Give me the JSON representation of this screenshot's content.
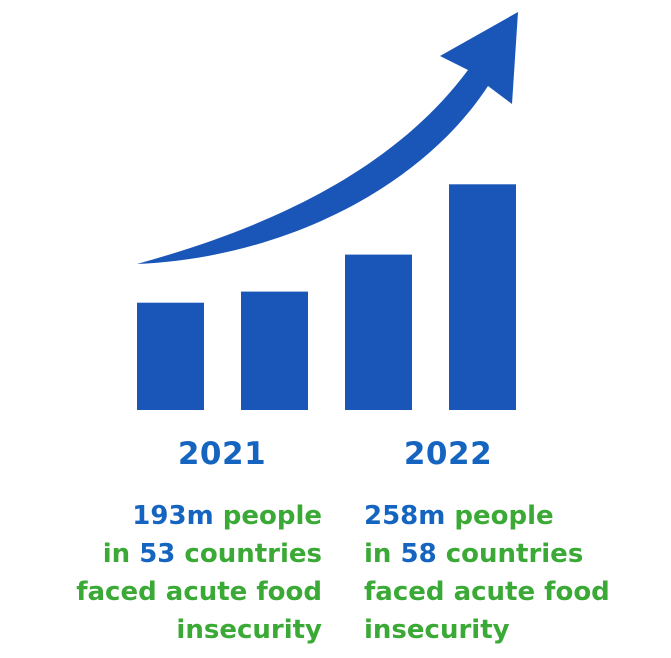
{
  "chart_data": {
    "type": "bar",
    "categories": [
      "",
      "",
      "",
      ""
    ],
    "values": [
      29,
      32,
      42,
      61
    ],
    "ylim": [
      0,
      100
    ],
    "trend": "rising arrow",
    "bar_color": "#1a56b8",
    "arrow_color": "#1a56b8"
  },
  "years": [
    "2021",
    "2022"
  ],
  "stats": [
    {
      "line1_num": "193m",
      "line1_text": " people",
      "line2_pre": "in ",
      "line2_num": "53",
      "line2_text": " countries",
      "line3": "faced acute food",
      "line4": "insecurity"
    },
    {
      "line1_num": "258m",
      "line1_text": " people",
      "line2_pre": "in ",
      "line2_num": "58",
      "line2_text": " countries",
      "line3": "faced acute food",
      "line4": "insecurity"
    }
  ],
  "colors": {
    "year": "#1565c0",
    "highlight": "#1565c0",
    "text_green": "#3aa935"
  }
}
